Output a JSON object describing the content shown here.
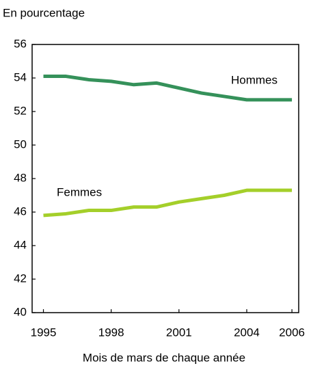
{
  "chart_data": {
    "type": "line",
    "ylabel": "En pourcentage",
    "xlabel": "Mois de mars de chaque année",
    "x": [
      1995,
      1996,
      1997,
      1998,
      1999,
      2000,
      2001,
      2002,
      2003,
      2004,
      2005,
      2006
    ],
    "series": [
      {
        "name": "Hommes",
        "color": "#35915a",
        "values": [
          54.1,
          54.1,
          53.9,
          53.8,
          53.6,
          53.7,
          53.4,
          53.1,
          52.9,
          52.7,
          52.7,
          52.7
        ]
      },
      {
        "name": "Femmes",
        "color": "#a4cf2a",
        "values": [
          45.8,
          45.9,
          46.1,
          46.1,
          46.3,
          46.3,
          46.6,
          46.8,
          47.0,
          47.3,
          47.3,
          47.3
        ]
      }
    ],
    "xlim": [
      1994.5,
      2006.3
    ],
    "xticks": [
      1995,
      1998,
      2001,
      2004,
      2006
    ],
    "ylim": [
      40,
      56
    ],
    "yticks": [
      40,
      42,
      44,
      46,
      48,
      50,
      52,
      54,
      56
    ],
    "grid": false
  }
}
